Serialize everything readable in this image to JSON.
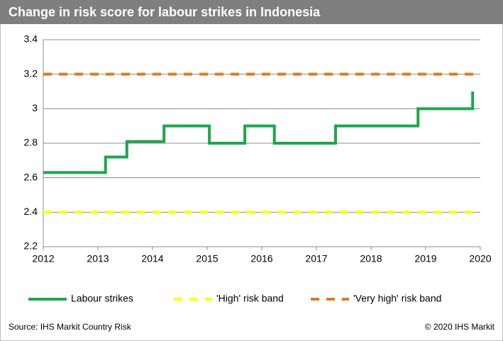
{
  "chart_data": {
    "type": "line",
    "title": "Change in risk score for labour strikes in Indonesia",
    "source": "Source: IHS Markit Country Risk",
    "copyright": "© 2020 IHS Markit",
    "xlim": [
      2012,
      2020
    ],
    "xticks": [
      2012,
      2013,
      2014,
      2015,
      2016,
      2017,
      2018,
      2019,
      2020
    ],
    "ylim": [
      2.2,
      3.4
    ],
    "yticks": [
      2.2,
      2.4,
      2.6,
      2.8,
      3,
      3.2,
      3.4
    ],
    "grid": true,
    "series": [
      {
        "name": "Labour strikes",
        "color": "#1ea64c",
        "dashed": false,
        "x": [
          2012,
          2013.14,
          2013.14,
          2013.53,
          2013.53,
          2014.21,
          2014.21,
          2015.04,
          2015.04,
          2015.69,
          2015.69,
          2016.23,
          2016.23,
          2017.35,
          2017.35,
          2018.86,
          2018.86,
          2019.86,
          2019.86
        ],
        "values": [
          2.63,
          2.63,
          2.72,
          2.72,
          2.81,
          2.81,
          2.9,
          2.9,
          2.8,
          2.8,
          2.9,
          2.9,
          2.8,
          2.8,
          2.9,
          2.9,
          3.0,
          3.0,
          3.1
        ]
      },
      {
        "name": "'High' risk band",
        "color": "#ffff00",
        "dashed": true,
        "x": [
          2012,
          2020
        ],
        "values": [
          2.4,
          2.4
        ]
      },
      {
        "name": "'Very high' risk band",
        "color": "#e07a22",
        "dashed": true,
        "x": [
          2012,
          2020
        ],
        "values": [
          3.2,
          3.2
        ]
      }
    ]
  }
}
